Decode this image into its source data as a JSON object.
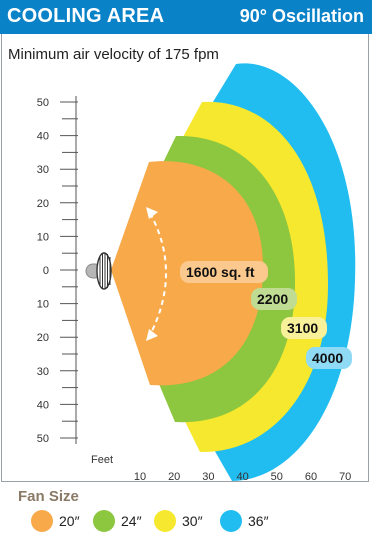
{
  "header": {
    "title": "COOLING AREA",
    "mode": "90° Oscillation"
  },
  "subtitle": "Minimum air velocity of 175 fpm",
  "y_axis": {
    "ticks": [
      "50",
      "40",
      "30",
      "20",
      "10",
      "0",
      "10",
      "20",
      "30",
      "40",
      "50"
    ]
  },
  "x_axis": {
    "unit_label": "Feet",
    "ticks": [
      "10",
      "20",
      "30",
      "40",
      "50",
      "60",
      "70"
    ]
  },
  "coverage": [
    {
      "size": "36″",
      "area": "4000",
      "color": "#22bdf0"
    },
    {
      "size": "30″",
      "area": "3100",
      "color": "#f5e82e"
    },
    {
      "size": "24″",
      "area": "2200",
      "color": "#8dc63f"
    },
    {
      "size": "20″",
      "area": "1600 sq. ft",
      "color": "#f8a94a"
    }
  ],
  "legend": {
    "title": "Fan Size",
    "items": [
      {
        "label": "20″",
        "color": "#f8a94a"
      },
      {
        "label": "24″",
        "color": "#8dc63f"
      },
      {
        "label": "30″",
        "color": "#f5e82e"
      },
      {
        "label": "36″",
        "color": "#22bdf0"
      }
    ]
  }
}
